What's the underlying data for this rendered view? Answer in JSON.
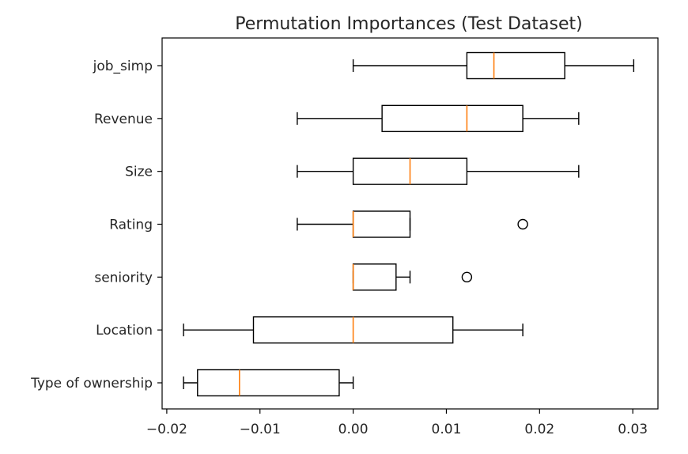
{
  "chart_data": {
    "type": "boxplot",
    "orientation": "horizontal",
    "title": "Permutation Importances (Test Dataset)",
    "xlabel": "",
    "ylabel": "",
    "xlim": [
      -0.0205,
      0.0327
    ],
    "xticks": [
      -0.02,
      -0.01,
      0.0,
      0.01,
      0.02,
      0.03
    ],
    "xtick_labels": [
      "−0.02",
      "−0.01",
      "0.00",
      "0.01",
      "0.02",
      "0.03"
    ],
    "grid": false,
    "colors": {
      "box": "#000000",
      "median": "#ff7f0e",
      "flier": "#000000"
    },
    "categories": [
      "job_simp",
      "Revenue",
      "Size",
      "Rating",
      "seniority",
      "Location",
      "Type of ownership"
    ],
    "boxes": [
      {
        "label": "job_simp",
        "whislo": 0.0,
        "q1": 0.0122,
        "median": 0.0151,
        "q3": 0.0227,
        "whishi": 0.0301,
        "fliers": []
      },
      {
        "label": "Revenue",
        "whislo": -0.006,
        "q1": 0.0031,
        "median": 0.0122,
        "q3": 0.0182,
        "whishi": 0.0242,
        "fliers": []
      },
      {
        "label": "Size",
        "whislo": -0.006,
        "q1": 0.0,
        "median": 0.0061,
        "q3": 0.0122,
        "whishi": 0.0242,
        "fliers": []
      },
      {
        "label": "Rating",
        "whislo": -0.006,
        "q1": 0.0,
        "median": 0.0,
        "q3": 0.0061,
        "whishi": 0.0061,
        "fliers": [
          0.0182
        ]
      },
      {
        "label": "seniority",
        "whislo": 0.0,
        "q1": 0.0,
        "median": 0.0,
        "q3": 0.0046,
        "whishi": 0.0061,
        "fliers": [
          0.0122
        ]
      },
      {
        "label": "Location",
        "whislo": -0.0182,
        "q1": -0.0107,
        "median": 0.0,
        "q3": 0.0107,
        "whishi": 0.0182,
        "fliers": []
      },
      {
        "label": "Type of ownership",
        "whislo": -0.0182,
        "q1": -0.0167,
        "median": -0.0122,
        "q3": -0.0015,
        "whishi": 0.0,
        "fliers": []
      }
    ]
  }
}
